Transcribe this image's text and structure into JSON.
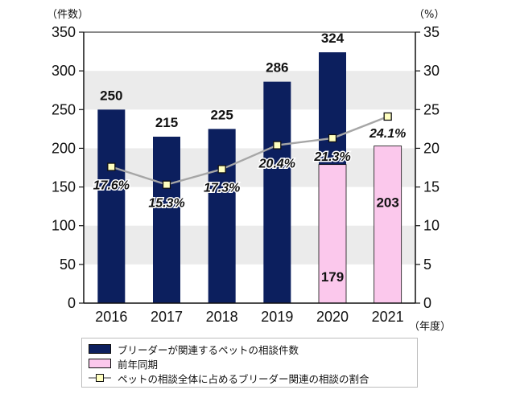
{
  "chart_data": {
    "type": "bar",
    "categories": [
      "2016",
      "2017",
      "2018",
      "2019",
      "2020",
      "2021"
    ],
    "series": [
      {
        "name": "ブリーダーが関連するペットの相談件数",
        "kind": "bar",
        "axis": "left",
        "color": "#0c1f5e",
        "values": [
          250,
          215,
          225,
          286,
          324,
          null
        ],
        "labels": [
          "250",
          "215",
          "225",
          "286",
          "324",
          ""
        ]
      },
      {
        "name": "前年同期",
        "kind": "bar",
        "axis": "left",
        "color": "#fbc8ec",
        "values": [
          null,
          null,
          null,
          null,
          179,
          203
        ],
        "labels": [
          "",
          "",
          "",
          "",
          "179",
          "203"
        ]
      },
      {
        "name": "ペットの相談全体に占めるブリーダー関連の相談の割合",
        "kind": "line",
        "axis": "right",
        "color": "#a6a6a6",
        "marker_color": "#ffffc0",
        "values": [
          17.6,
          15.3,
          17.3,
          20.4,
          21.3,
          24.1
        ],
        "labels": [
          "17.6%",
          "15.3%",
          "17.3%",
          "20.4%",
          "21.3%",
          "24.1%"
        ]
      }
    ],
    "y_left": {
      "unit": "（件数）",
      "ylim": [
        0,
        350
      ],
      "ticks": [
        "0",
        "50",
        "100",
        "150",
        "200",
        "250",
        "300",
        "350"
      ]
    },
    "y_right": {
      "unit": "（%）",
      "ylim": [
        0,
        35
      ],
      "ticks": [
        "0",
        "5",
        "10",
        "15",
        "20",
        "25",
        "30",
        "35"
      ]
    },
    "x_unit": "（年度）",
    "grid": "alternating-bands",
    "legend_position": "bottom"
  },
  "colors": {
    "band": "#ebebeb",
    "axis": "#111111"
  }
}
